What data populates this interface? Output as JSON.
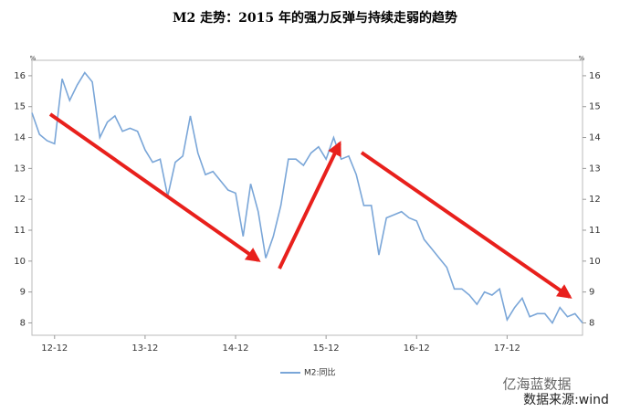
{
  "chart_data": {
    "type": "line",
    "title": "M2 走势：2015 年的强力反弹与持续走弱的趋势",
    "categories": [
      null,
      null,
      null,
      "12-12",
      null,
      null,
      null,
      null,
      null,
      null,
      null,
      null,
      null,
      null,
      null,
      "13-12",
      null,
      null,
      null,
      null,
      null,
      null,
      null,
      null,
      null,
      null,
      null,
      "14-12",
      null,
      null,
      null,
      null,
      null,
      null,
      null,
      null,
      null,
      null,
      null,
      "15-12",
      null,
      null,
      null,
      null,
      null,
      null,
      null,
      null,
      null,
      null,
      null,
      "16-12",
      null,
      null,
      null,
      null,
      null,
      null,
      null,
      null,
      null,
      null,
      null,
      "17-12",
      null,
      null,
      null,
      null,
      null,
      null,
      null,
      null,
      null,
      null
    ],
    "series": [
      {
        "name": "M2:同比",
        "color": "#7aa6d8",
        "values": [
          14.8,
          14.1,
          13.9,
          13.8,
          15.9,
          15.2,
          15.7,
          16.1,
          15.8,
          14.0,
          14.5,
          14.7,
          14.2,
          14.3,
          14.2,
          13.6,
          13.2,
          13.3,
          12.1,
          13.2,
          13.4,
          14.7,
          13.5,
          12.8,
          12.9,
          12.6,
          12.3,
          12.2,
          10.8,
          12.5,
          11.6,
          10.1,
          10.8,
          11.8,
          13.3,
          13.3,
          13.1,
          13.5,
          13.7,
          13.3,
          14.0,
          13.3,
          13.4,
          12.8,
          11.8,
          11.8,
          10.2,
          11.4,
          11.5,
          11.6,
          11.4,
          11.3,
          10.7,
          10.4,
          10.1,
          9.8,
          9.1,
          9.1,
          8.9,
          8.6,
          9.0,
          8.9,
          9.1,
          8.1,
          8.5,
          8.8,
          8.2,
          8.3,
          8.3,
          8.0,
          8.5,
          8.2,
          8.3,
          8.0
        ]
      }
    ],
    "y_unit": "%",
    "y2_unit": "%",
    "ylim": [
      7.6,
      16.5
    ],
    "yticks": [
      8,
      9,
      10,
      11,
      12,
      13,
      14,
      15,
      16
    ],
    "y2lim": [
      7.6,
      16.5
    ],
    "y2ticks": [
      8,
      9,
      10,
      11,
      12,
      13,
      14,
      15,
      16
    ],
    "legend": "bottom",
    "watermark": "亿海蓝数据",
    "source": "数据来源:wind"
  }
}
